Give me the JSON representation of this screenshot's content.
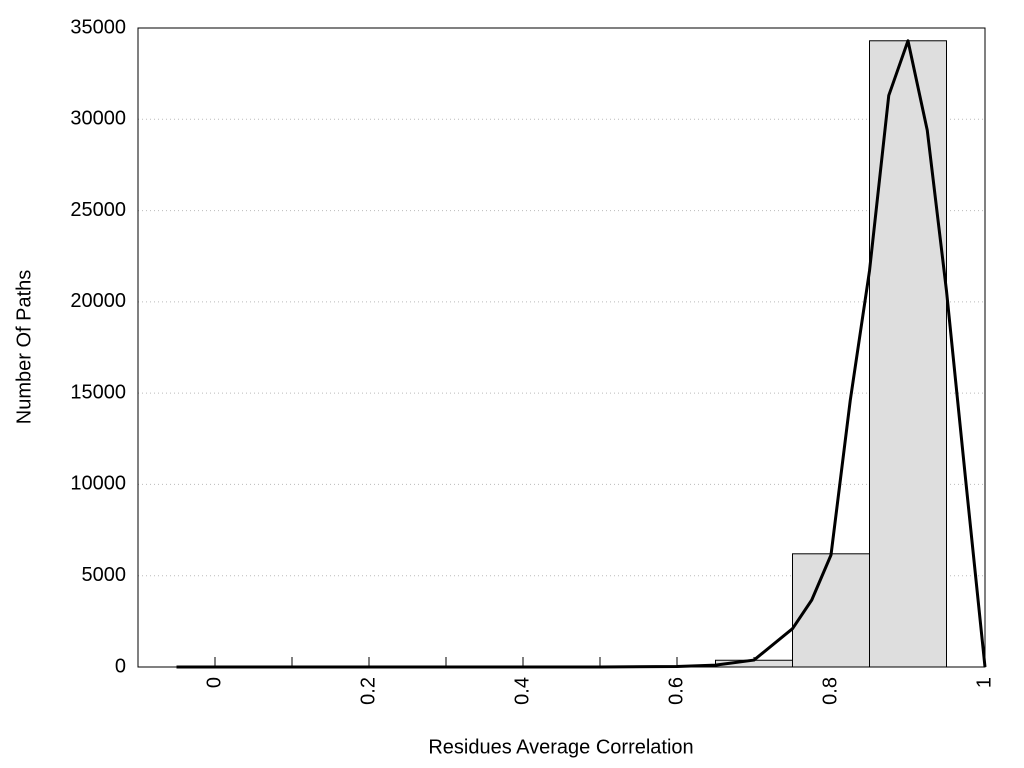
{
  "chart_data": {
    "type": "histogram",
    "xlabel": "Residues Average Correlation",
    "ylabel": "Number Of Paths",
    "bins": [
      -0.05,
      0.05,
      0.15,
      0.25,
      0.35,
      0.45,
      0.55,
      0.65,
      0.75,
      0.85,
      0.95
    ],
    "values": [
      0,
      0,
      0,
      0,
      0,
      5,
      30,
      370,
      6200,
      34300
    ],
    "color": "#dedede",
    "curve": {
      "color": "#000000",
      "x": [
        -0.05,
        0.1,
        0.3,
        0.5,
        0.6,
        0.65,
        0.7,
        0.75,
        0.775,
        0.8,
        0.825,
        0.85,
        0.875,
        0.9,
        0.925,
        0.95,
        0.975,
        1.0
      ],
      "values": [
        0,
        0,
        0,
        0,
        30,
        100,
        380,
        2100,
        3670,
        6135,
        14600,
        21700,
        31300,
        34300,
        29400,
        20600,
        10200,
        0
      ]
    },
    "xlim": [
      -0.1,
      1
    ],
    "xticks": [
      0,
      0.2,
      0.4,
      0.6,
      0.8,
      1
    ],
    "xminorticks": [
      0.1,
      0.3,
      0.5,
      0.7,
      0.9
    ],
    "ylim": [
      0,
      35000
    ],
    "yticks": [
      0,
      5000,
      10000,
      15000,
      20000,
      25000,
      30000,
      35000
    ],
    "grid": true
  }
}
